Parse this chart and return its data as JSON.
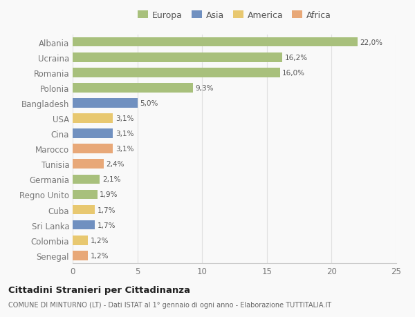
{
  "categories": [
    "Albania",
    "Ucraina",
    "Romania",
    "Polonia",
    "Bangladesh",
    "USA",
    "Cina",
    "Marocco",
    "Tunisia",
    "Germania",
    "Regno Unito",
    "Cuba",
    "Sri Lanka",
    "Colombia",
    "Senegal"
  ],
  "values": [
    22.0,
    16.2,
    16.0,
    9.3,
    5.0,
    3.1,
    3.1,
    3.1,
    2.4,
    2.1,
    1.9,
    1.7,
    1.7,
    1.2,
    1.2
  ],
  "regions": [
    "Europa",
    "Europa",
    "Europa",
    "Europa",
    "Asia",
    "America",
    "Asia",
    "Africa",
    "Africa",
    "Europa",
    "Europa",
    "America",
    "Asia",
    "America",
    "Africa"
  ],
  "colors": {
    "Europa": "#a8c07c",
    "Asia": "#7090c0",
    "America": "#e8c870",
    "Africa": "#e8a878"
  },
  "title": "Cittadini Stranieri per Cittadinanza",
  "subtitle": "COMUNE DI MINTURNO (LT) - Dati ISTAT al 1° gennaio di ogni anno - Elaborazione TUTTITALIA.IT",
  "xlim": [
    0,
    25
  ],
  "xticks": [
    0,
    5,
    10,
    15,
    20,
    25
  ],
  "background_color": "#f9f9f9",
  "bar_height": 0.62,
  "legend_entries": [
    "Europa",
    "Asia",
    "America",
    "Africa"
  ],
  "grid_color": "#e0e0e0"
}
